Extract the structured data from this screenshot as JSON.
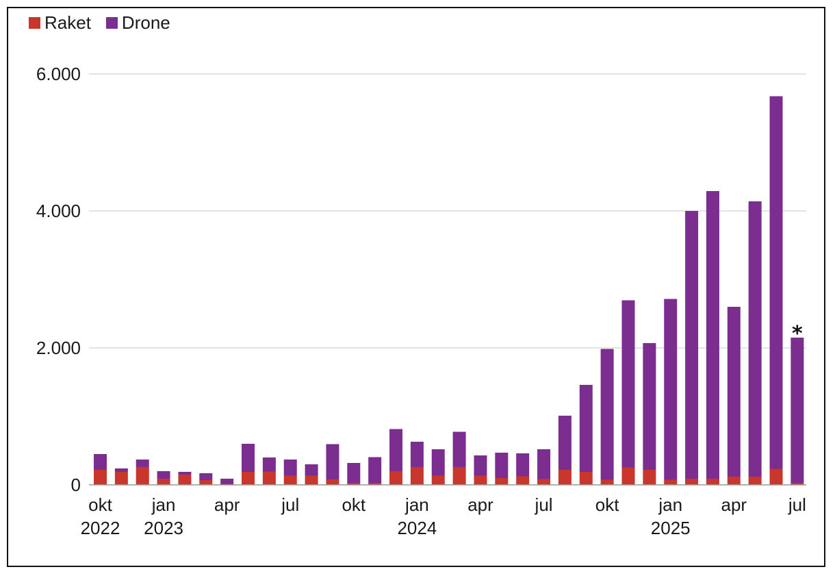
{
  "chart_data": {
    "type": "bar",
    "stacked": true,
    "title": "",
    "xlabel": "",
    "ylabel": "",
    "ylim": [
      0,
      6000
    ],
    "yticks": [
      {
        "value": 0,
        "label": "0"
      },
      {
        "value": 2000,
        "label": "2.000"
      },
      {
        "value": 4000,
        "label": "4.000"
      },
      {
        "value": 6000,
        "label": "6.000"
      }
    ],
    "grid": true,
    "legend_placement": "top-left",
    "categories": [
      "okt 2022",
      "nov 2022",
      "dec 2022",
      "jan 2023",
      "feb 2023",
      "mar 2023",
      "apr 2023",
      "maj 2023",
      "jun 2023",
      "jul 2023",
      "aug 2023",
      "sep 2023",
      "okt 2023",
      "nov 2023",
      "dec 2023",
      "jan 2024",
      "feb 2024",
      "mar 2024",
      "apr 2024",
      "maj 2024",
      "jun 2024",
      "jul 2024",
      "aug 2024",
      "sep 2024",
      "okt 2024",
      "nov 2024",
      "dec 2024",
      "jan 2025",
      "feb 2025",
      "mar 2025",
      "apr 2025",
      "maj 2025",
      "jun 2025",
      "jul 2025"
    ],
    "x_tick_labels": [
      {
        "index": 0,
        "line1": "okt",
        "line2": "2022"
      },
      {
        "index": 3,
        "line1": "jan",
        "line2": "2023"
      },
      {
        "index": 6,
        "line1": "apr",
        "line2": ""
      },
      {
        "index": 9,
        "line1": "jul",
        "line2": ""
      },
      {
        "index": 12,
        "line1": "okt",
        "line2": ""
      },
      {
        "index": 15,
        "line1": "jan",
        "line2": "2024"
      },
      {
        "index": 18,
        "line1": "apr",
        "line2": ""
      },
      {
        "index": 21,
        "line1": "jul",
        "line2": ""
      },
      {
        "index": 24,
        "line1": "okt",
        "line2": ""
      },
      {
        "index": 27,
        "line1": "jan",
        "line2": "2025"
      },
      {
        "index": 30,
        "line1": "apr",
        "line2": ""
      },
      {
        "index": 33,
        "line1": "jul",
        "line2": ""
      }
    ],
    "series": [
      {
        "name": "Raket",
        "color": "#c9372c",
        "values": [
          220,
          190,
          260,
          90,
          150,
          70,
          10,
          190,
          195,
          135,
          135,
          80,
          30,
          30,
          200,
          260,
          135,
          260,
          135,
          100,
          125,
          85,
          220,
          190,
          75,
          255,
          220,
          75,
          90,
          90,
          120,
          120,
          235,
          30
        ]
      },
      {
        "name": "Drone",
        "color": "#7b2d90",
        "values": [
          230,
          50,
          110,
          110,
          40,
          100,
          80,
          410,
          205,
          235,
          165,
          515,
          290,
          375,
          615,
          370,
          385,
          515,
          295,
          370,
          335,
          435,
          790,
          1270,
          1910,
          2440,
          1850,
          2640,
          3910,
          4200,
          2480,
          4020,
          5440,
          2120
        ]
      }
    ],
    "annotations": [
      {
        "category": "jul 2025",
        "text": "*"
      }
    ]
  }
}
